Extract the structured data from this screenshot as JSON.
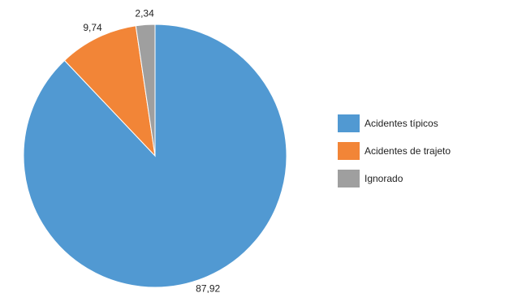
{
  "chart_data": {
    "type": "pie",
    "title": "",
    "slices": [
      {
        "label": "Acidentes típicos",
        "value": 87.92,
        "value_label": "87,92",
        "color": "#5199d2"
      },
      {
        "label": "Acidentes de trajeto",
        "value": 9.74,
        "value_label": "9,74",
        "color": "#f28537"
      },
      {
        "label": "Ignorado",
        "value": 2.34,
        "value_label": "2,34",
        "color": "#9f9f9f"
      }
    ],
    "legend": {
      "position": "right"
    }
  }
}
